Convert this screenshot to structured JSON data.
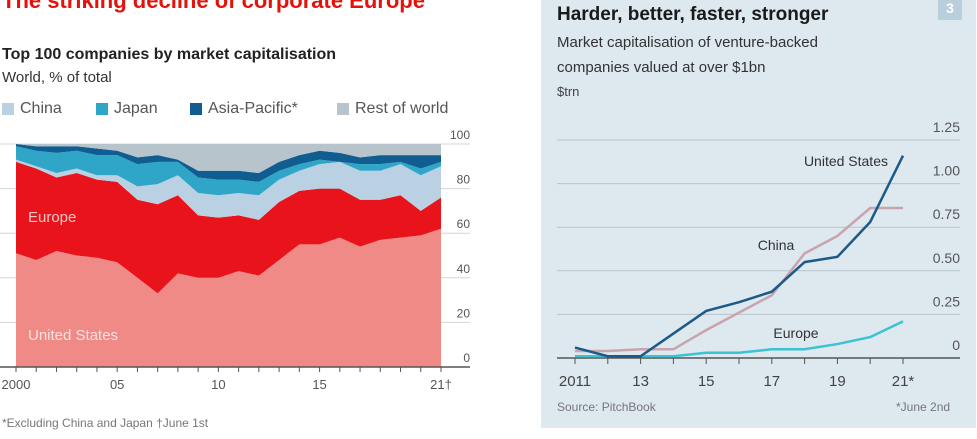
{
  "chart_data": [
    {
      "type": "area",
      "stacked": true,
      "title": "The striking decline of corporate Europe",
      "subtitle": "Top 100 companies by market capitalisation",
      "ylabel": "World, % of total",
      "x": [
        2000,
        2001,
        2002,
        2003,
        2004,
        2005,
        2006,
        2007,
        2008,
        2009,
        2010,
        2011,
        2012,
        2013,
        2014,
        2015,
        2016,
        2017,
        2018,
        2019,
        2020,
        2021
      ],
      "xticks": [
        {
          "v": 2000,
          "label": "2000"
        },
        {
          "v": 2005,
          "label": "05"
        },
        {
          "v": 2010,
          "label": "10"
        },
        {
          "v": 2015,
          "label": "15"
        },
        {
          "v": 2021,
          "label": "21†"
        }
      ],
      "yticks": [
        0,
        20,
        40,
        60,
        80,
        100
      ],
      "ylim": [
        0,
        100
      ],
      "grid": true,
      "legend_position": "top",
      "series": [
        {
          "name": "United States",
          "color": "#ef8a87",
          "values": [
            51,
            48,
            52,
            50,
            49,
            47,
            40,
            33,
            42,
            40,
            40,
            43,
            41,
            48,
            55,
            55,
            58,
            54,
            57,
            58,
            59,
            62
          ]
        },
        {
          "name": "Europe",
          "color": "#e8131b",
          "values": [
            41,
            41,
            33,
            37,
            35,
            36,
            35,
            40,
            35,
            28,
            27,
            25,
            25,
            26,
            24,
            25,
            22,
            21,
            18,
            19,
            11,
            14
          ]
        },
        {
          "name": "China",
          "color": "#b9d1e2",
          "values": [
            1,
            1,
            2,
            2,
            2,
            3,
            6,
            9,
            9,
            10,
            10,
            10,
            11,
            10,
            9,
            11,
            12,
            13,
            13,
            14,
            16,
            14
          ]
        },
        {
          "name": "Japan",
          "color": "#2fa6c7",
          "values": [
            6,
            7,
            9,
            8,
            9,
            9,
            10,
            10,
            6,
            7,
            7,
            6,
            6,
            4,
            3,
            2,
            0,
            3,
            3,
            1,
            3,
            2
          ]
        },
        {
          "name": "Asia-Pacific*",
          "color": "#105d91",
          "values": [
            1,
            2,
            3,
            2,
            3,
            2,
            3,
            3,
            1,
            3,
            4,
            4,
            4,
            4,
            4,
            4,
            4,
            3,
            4,
            3,
            6,
            3
          ]
        },
        {
          "name": "Rest of world",
          "color": "#b7c4cc",
          "values": [
            0,
            1,
            1,
            1,
            2,
            3,
            6,
            5,
            7,
            12,
            12,
            12,
            13,
            8,
            5,
            3,
            4,
            6,
            5,
            5,
            5,
            5
          ]
        }
      ],
      "legend": [
        "China",
        "Japan",
        "Asia-Pacific*",
        "Rest of world"
      ],
      "area_labels": [
        "Europe",
        "United States"
      ],
      "footnote": "*Excluding China and Japan    †June 1st"
    },
    {
      "type": "line",
      "title": "Harder, better, faster, stronger",
      "subtitle_line1": "Market capitalisation of venture-backed",
      "subtitle_line2": "companies valued at over $1bn",
      "ylabel": "$trn",
      "panel_number": "3",
      "x": [
        2011,
        2012,
        2013,
        2014,
        2015,
        2016,
        2017,
        2018,
        2019,
        2020,
        2021
      ],
      "xticks": [
        {
          "v": 2011,
          "label": "2011"
        },
        {
          "v": 2013,
          "label": "13"
        },
        {
          "v": 2015,
          "label": "15"
        },
        {
          "v": 2017,
          "label": "17"
        },
        {
          "v": 2019,
          "label": "19"
        },
        {
          "v": 2021,
          "label": "21*"
        }
      ],
      "yticks": [
        {
          "v": 0,
          "label": "0"
        },
        {
          "v": 0.25,
          "label": "0.25"
        },
        {
          "v": 0.5,
          "label": "0.50"
        },
        {
          "v": 0.75,
          "label": "0.75"
        },
        {
          "v": 1,
          "label": "1.00"
        },
        {
          "v": 1.25,
          "label": "1.25"
        }
      ],
      "ylim": [
        0,
        1.25
      ],
      "grid": true,
      "series": [
        {
          "name": "China",
          "color": "#c9a3ad",
          "values": [
            0.04,
            0.04,
            0.05,
            0.05,
            0.16,
            0.26,
            0.36,
            0.6,
            0.7,
            0.86,
            0.86
          ]
        },
        {
          "name": "Europe",
          "color": "#3cc2d0",
          "values": [
            0.01,
            0.01,
            0.01,
            0.01,
            0.03,
            0.03,
            0.05,
            0.05,
            0.08,
            0.12,
            0.21
          ]
        },
        {
          "name": "United States",
          "color": "#1d5a87",
          "values": [
            0.06,
            0.01,
            0.01,
            0.14,
            0.27,
            0.32,
            0.38,
            0.55,
            0.58,
            0.78,
            1.16
          ]
        }
      ],
      "source": "Source: PitchBook",
      "footnote": "*June 2nd"
    }
  ]
}
